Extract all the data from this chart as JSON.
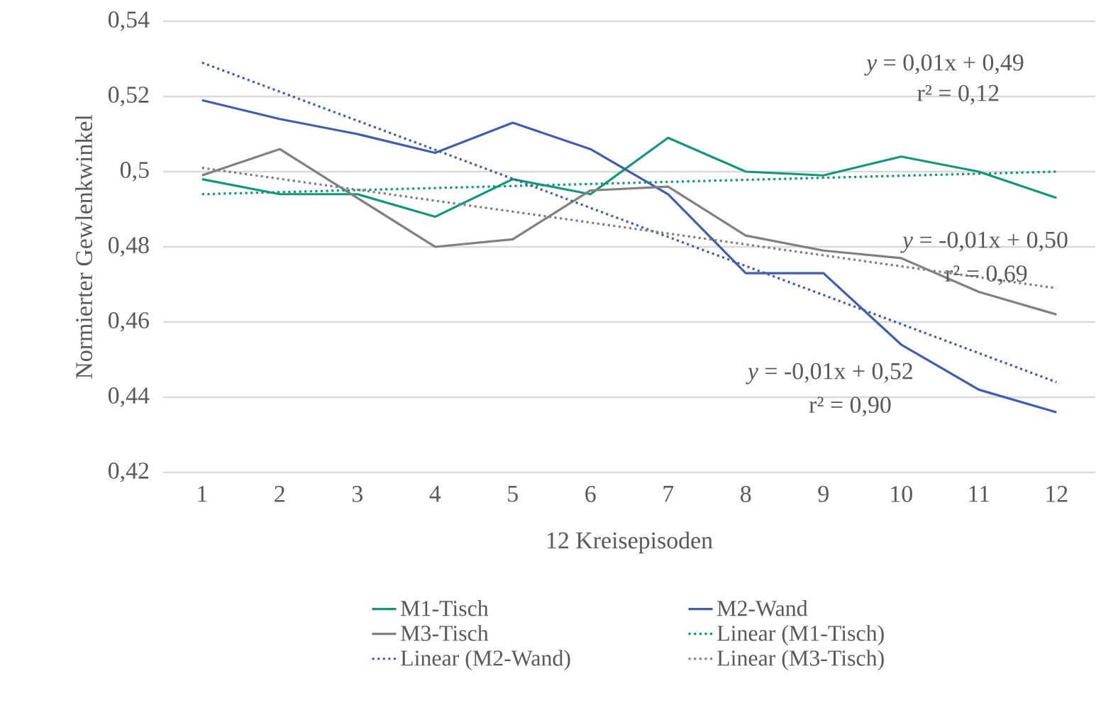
{
  "chart_data": {
    "type": "line",
    "xlabel": "12 Kreisepisoden",
    "ylabel": "Normierter Gewlenkwinkel",
    "xlim": [
      0.5,
      12.5
    ],
    "xticks": [
      1,
      2,
      3,
      4,
      5,
      6,
      7,
      8,
      9,
      10,
      11,
      12
    ],
    "ylim": [
      0.42,
      0.54
    ],
    "yticks": [
      {
        "value": 0.42,
        "label": "0,42"
      },
      {
        "value": 0.44,
        "label": "0,44"
      },
      {
        "value": 0.46,
        "label": "0,46"
      },
      {
        "value": 0.48,
        "label": "0,48"
      },
      {
        "value": 0.5,
        "label": "0,5"
      },
      {
        "value": 0.52,
        "label": "0,52"
      },
      {
        "value": 0.54,
        "label": "0,54"
      }
    ],
    "grid": "y",
    "legend": "bottom",
    "marker": "none",
    "series": [
      {
        "name": "M1-Tisch",
        "color": "#11987c",
        "line_style": "solid",
        "x": [
          1,
          2,
          3,
          4,
          5,
          6,
          7,
          8,
          9,
          10,
          11,
          12
        ],
        "values": [
          0.498,
          0.494,
          0.494,
          0.488,
          0.498,
          0.494,
          0.509,
          0.5,
          0.499,
          0.504,
          0.5,
          0.493
        ]
      },
      {
        "name": "M2-Wand",
        "color": "#3f5eaf",
        "line_style": "solid",
        "x": [
          1,
          2,
          3,
          4,
          5,
          6,
          7,
          8,
          9,
          10,
          11,
          12
        ],
        "values": [
          0.519,
          0.514,
          0.51,
          0.505,
          0.513,
          0.506,
          0.494,
          0.473,
          0.473,
          0.454,
          0.442,
          0.436
        ]
      },
      {
        "name": "M3-Tisch",
        "color": "#808080",
        "line_style": "solid",
        "x": [
          1,
          2,
          3,
          4,
          5,
          6,
          7,
          8,
          9,
          10,
          11,
          12
        ],
        "values": [
          0.499,
          0.506,
          0.493,
          0.48,
          0.482,
          0.495,
          0.496,
          0.483,
          0.479,
          0.477,
          0.468,
          0.462
        ]
      },
      {
        "name": "Linear (M1-Tisch)",
        "color": "#11987c",
        "line_style": "dotted",
        "x": [
          1,
          12
        ],
        "values": [
          0.494,
          0.5
        ]
      },
      {
        "name": "Linear (M2-Wand)",
        "color": "#3f5eaf",
        "line_style": "dotted",
        "x": [
          1,
          12
        ],
        "values": [
          0.529,
          0.444
        ]
      },
      {
        "name": "Linear (M3-Tisch)",
        "color": "#808080",
        "line_style": "dotted",
        "x": [
          1,
          12
        ],
        "values": [
          0.501,
          0.469
        ]
      }
    ],
    "annotations": [
      "*y* = 0,01x + 0,49",
      "r² = 0,12",
      "*y* = -0,01x + 0,50",
      "r² = 0,69",
      "*y* = -0,01x + 0,52",
      "r² = 0,90"
    ]
  }
}
